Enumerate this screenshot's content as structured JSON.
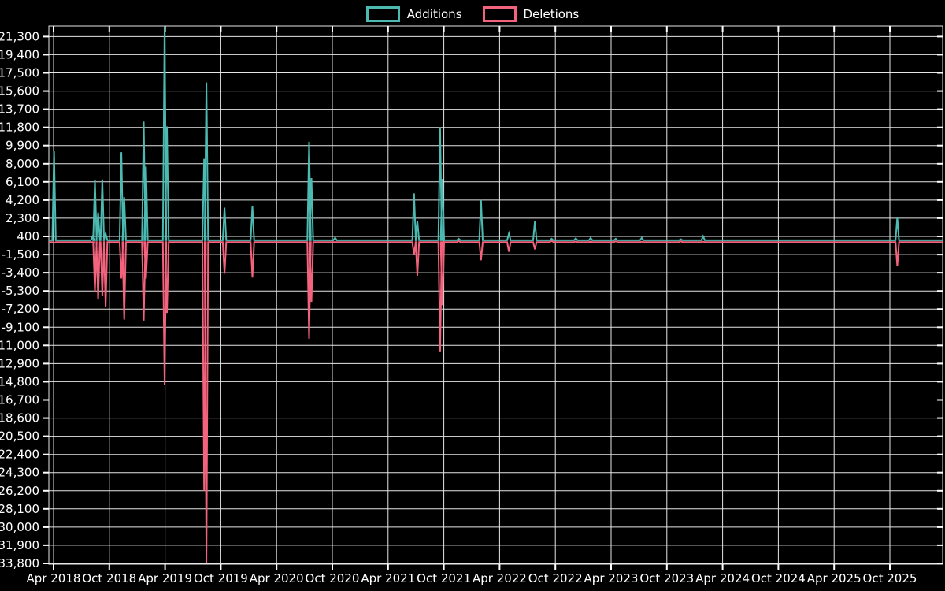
{
  "page": {
    "background": "#000000",
    "text_color": "#ffffff"
  },
  "legend": {
    "position": "top-center"
  },
  "chart_data": {
    "type": "line",
    "description": "Weekly code additions and deletions spike chart",
    "grid": true,
    "legend_position": "top-center",
    "series": [
      {
        "name": "Additions",
        "color": "#4dbab2"
      },
      {
        "name": "Deletions",
        "color": "#f4637d"
      }
    ],
    "x_ticks": [
      "Apr 2018",
      "Oct 2018",
      "Apr 2019",
      "Oct 2019",
      "Apr 2020",
      "Oct 2020",
      "Apr 2021",
      "Oct 2021",
      "Apr 2022",
      "Oct 2022",
      "Apr 2023",
      "Oct 2023",
      "Apr 2024",
      "Oct 2024",
      "Apr 2025",
      "Oct 2025"
    ],
    "x_tick_interval_months": 6,
    "y_ticks": [
      21300,
      19400,
      17500,
      15600,
      13700,
      11800,
      9900,
      8000,
      6100,
      4200,
      2300,
      400,
      -1500,
      -3400,
      -5300,
      -7200,
      -9100,
      -11000,
      -12900,
      -14800,
      -16700,
      -18600,
      -20500,
      -22400,
      -24300,
      -26200,
      -28100,
      -30000,
      -31900,
      -33800
    ],
    "ylim": [
      -33800,
      22400
    ],
    "baseline": 0,
    "events": [
      {
        "label": "Apr 2018",
        "t": 0.05,
        "additions": 9300,
        "deletions": -300
      },
      {
        "label": "Aug 2018",
        "t": 4.2,
        "additions": 400,
        "deletions": -200
      },
      {
        "label": "Aug 2018",
        "t": 4.45,
        "additions": 6300,
        "deletions": -5400
      },
      {
        "label": "Sep 2018",
        "t": 4.8,
        "additions": 2900,
        "deletions": -6200
      },
      {
        "label": "Sep 2018",
        "t": 5.25,
        "additions": 6350,
        "deletions": -5800
      },
      {
        "label": "Sep 2018",
        "t": 5.6,
        "additions": 700,
        "deletions": -7000
      },
      {
        "label": "Nov 2018",
        "t": 7.3,
        "additions": 9200,
        "deletions": -4000
      },
      {
        "label": "Nov 2018",
        "t": 7.6,
        "additions": 4500,
        "deletions": -8300
      },
      {
        "label": "Feb 2019",
        "t": 9.7,
        "additions": 12400,
        "deletions": -8400
      },
      {
        "label": "Feb 2019",
        "t": 9.95,
        "additions": 7700,
        "deletions": -4000
      },
      {
        "label": "Apr 2019",
        "t": 11.95,
        "additions": 22500,
        "deletions": -15100
      },
      {
        "label": "Apr 2019",
        "t": 12.2,
        "additions": 11900,
        "deletions": -7600
      },
      {
        "label": "Aug 2019",
        "t": 16.2,
        "additions": 8500,
        "deletions": -26200
      },
      {
        "label": "Sep 2019",
        "t": 16.45,
        "additions": 16500,
        "deletions": -33800
      },
      {
        "label": "Oct 2019",
        "t": 18.4,
        "additions": 3400,
        "deletions": -3500
      },
      {
        "label": "Jan 2020",
        "t": 21.4,
        "additions": 3600,
        "deletions": -3900
      },
      {
        "label": "Jul 2020",
        "t": 27.5,
        "additions": 10300,
        "deletions": -10300
      },
      {
        "label": "Aug 2020",
        "t": 27.75,
        "additions": 6500,
        "deletions": -6450
      },
      {
        "label": "Oct 2020",
        "t": 30.3,
        "additions": 270,
        "deletions": 0
      },
      {
        "label": "Jul 2021",
        "t": 38.8,
        "additions": 4900,
        "deletions": -1500
      },
      {
        "label": "Jul 2021",
        "t": 39.15,
        "additions": 2000,
        "deletions": -3700
      },
      {
        "label": "Sep 2021",
        "t": 41.6,
        "additions": 11800,
        "deletions": -11700
      },
      {
        "label": "Oct 2021",
        "t": 41.85,
        "additions": 6400,
        "deletions": -6800
      },
      {
        "label": "Nov 2021",
        "t": 43.6,
        "additions": 150,
        "deletions": -80
      },
      {
        "label": "Feb 2022",
        "t": 46.0,
        "additions": 4200,
        "deletions": -2100
      },
      {
        "label": "May 2022",
        "t": 49.0,
        "additions": 700,
        "deletions": -1200
      },
      {
        "label": "Jul 2022",
        "t": 51.8,
        "additions": 2000,
        "deletions": -950
      },
      {
        "label": "Sep 2022",
        "t": 53.6,
        "additions": 150,
        "deletions": -60
      },
      {
        "label": "Dec 2022",
        "t": 56.2,
        "additions": 200,
        "deletions": -120
      },
      {
        "label": "Jan 2023",
        "t": 57.8,
        "additions": 250,
        "deletions": -130
      },
      {
        "label": "Apr 2023",
        "t": 60.5,
        "additions": 150,
        "deletions": -100
      },
      {
        "label": "Jul 2023",
        "t": 63.3,
        "additions": 250,
        "deletions": -150
      },
      {
        "label": "Nov 2023",
        "t": 67.5,
        "additions": 100,
        "deletions": -100
      },
      {
        "label": "Jan 2024",
        "t": 69.9,
        "additions": 420,
        "deletions": -150
      },
      {
        "label": "Nov 2025",
        "t": 90.8,
        "additions": 2400,
        "deletions": -2700
      }
    ]
  }
}
